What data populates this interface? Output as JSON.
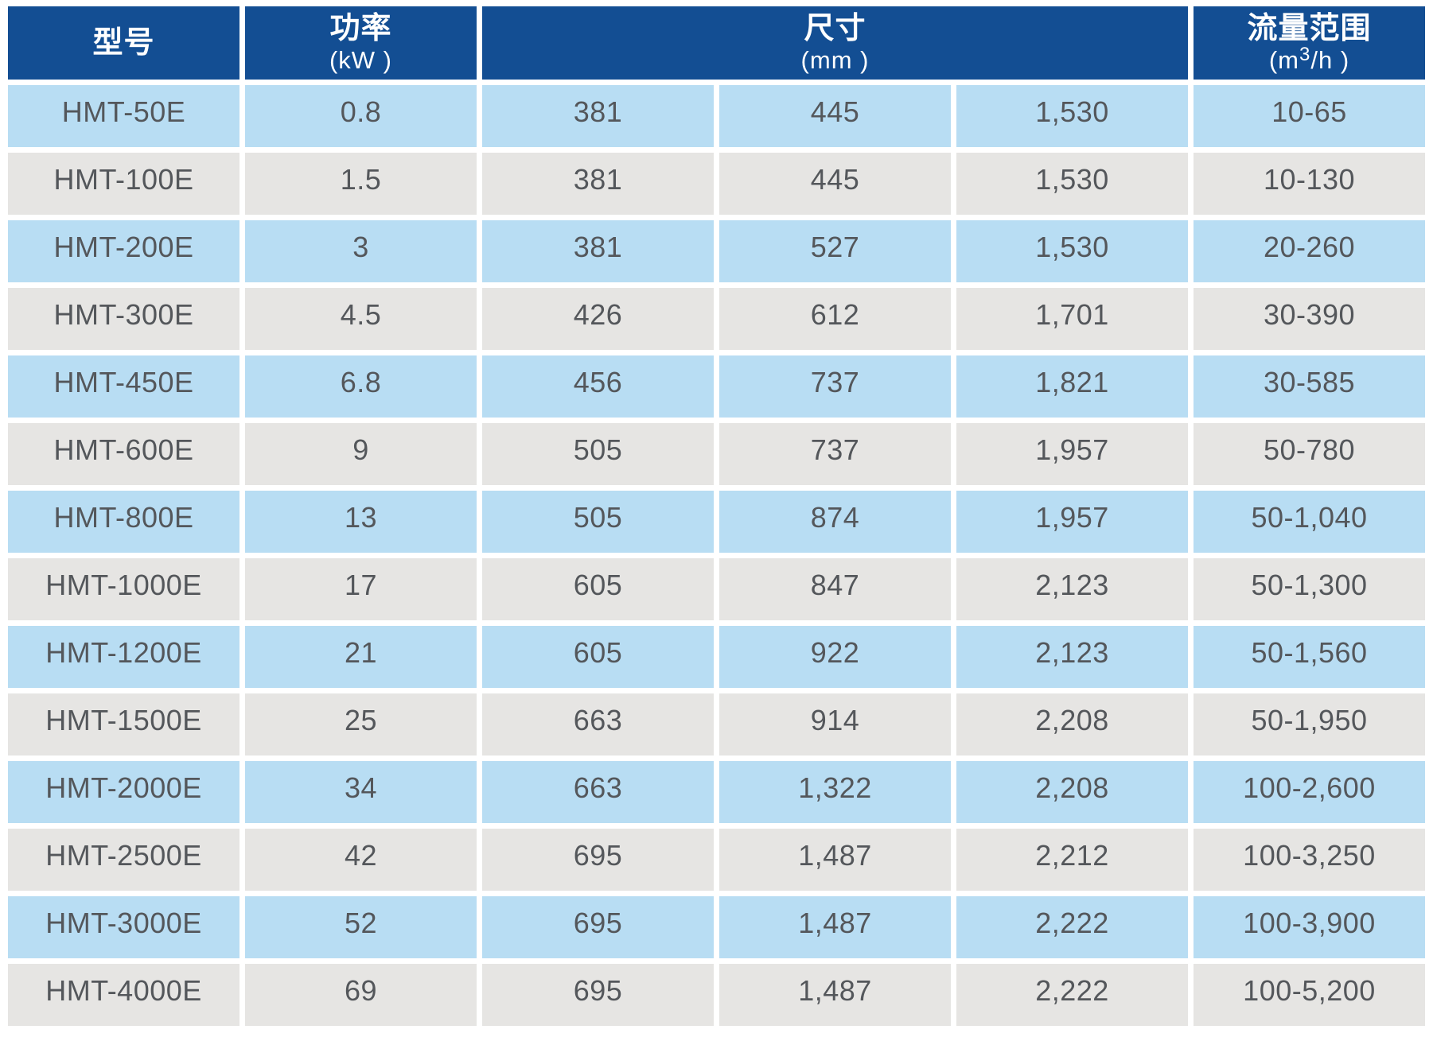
{
  "header": {
    "model_title": "型号",
    "power_title": "功率",
    "power_unit": "(kW )",
    "dims_title": "尺寸",
    "dims_unit": "(mm )",
    "flow_title": "流量范围",
    "flow_unit_prefix": "(m",
    "flow_unit_sup": "3",
    "flow_unit_suffix": "/h )"
  },
  "colors": {
    "header_bg": "#134e93",
    "header_text": "#ffffff",
    "row_blue": "#b8ddf3",
    "row_gray": "#e6e5e3",
    "body_text": "#54575b",
    "gap": "#ffffff"
  },
  "rows": [
    {
      "model": "HMT-50E",
      "power": "0.8",
      "dims": [
        "381",
        "445",
        "1,530"
      ],
      "flow": "10-65"
    },
    {
      "model": "HMT-100E",
      "power": "1.5",
      "dims": [
        "381",
        "445",
        "1,530"
      ],
      "flow": "10-130"
    },
    {
      "model": "HMT-200E",
      "power": "3",
      "dims": [
        "381",
        "527",
        "1,530"
      ],
      "flow": "20-260"
    },
    {
      "model": "HMT-300E",
      "power": "4.5",
      "dims": [
        "426",
        "612",
        "1,701"
      ],
      "flow": "30-390"
    },
    {
      "model": "HMT-450E",
      "power": "6.8",
      "dims": [
        "456",
        "737",
        "1,821"
      ],
      "flow": "30-585"
    },
    {
      "model": "HMT-600E",
      "power": "9",
      "dims": [
        "505",
        "737",
        "1,957"
      ],
      "flow": "50-780"
    },
    {
      "model": "HMT-800E",
      "power": "13",
      "dims": [
        "505",
        "874",
        "1,957"
      ],
      "flow": "50-1,040"
    },
    {
      "model": "HMT-1000E",
      "power": "17",
      "dims": [
        "605",
        "847",
        "2,123"
      ],
      "flow": "50-1,300"
    },
    {
      "model": "HMT-1200E",
      "power": "21",
      "dims": [
        "605",
        "922",
        "2,123"
      ],
      "flow": "50-1,560"
    },
    {
      "model": "HMT-1500E",
      "power": "25",
      "dims": [
        "663",
        "914",
        "2,208"
      ],
      "flow": "50-1,950"
    },
    {
      "model": "HMT-2000E",
      "power": "34",
      "dims": [
        "663",
        "1,322",
        "2,208"
      ],
      "flow": "100-2,600"
    },
    {
      "model": "HMT-2500E",
      "power": "42",
      "dims": [
        "695",
        "1,487",
        "2,212"
      ],
      "flow": "100-3,250"
    },
    {
      "model": "HMT-3000E",
      "power": "52",
      "dims": [
        "695",
        "1,487",
        "2,222"
      ],
      "flow": "100-3,900"
    },
    {
      "model": "HMT-4000E",
      "power": "69",
      "dims": [
        "695",
        "1,487",
        "2,222"
      ],
      "flow": "100-5,200"
    }
  ]
}
